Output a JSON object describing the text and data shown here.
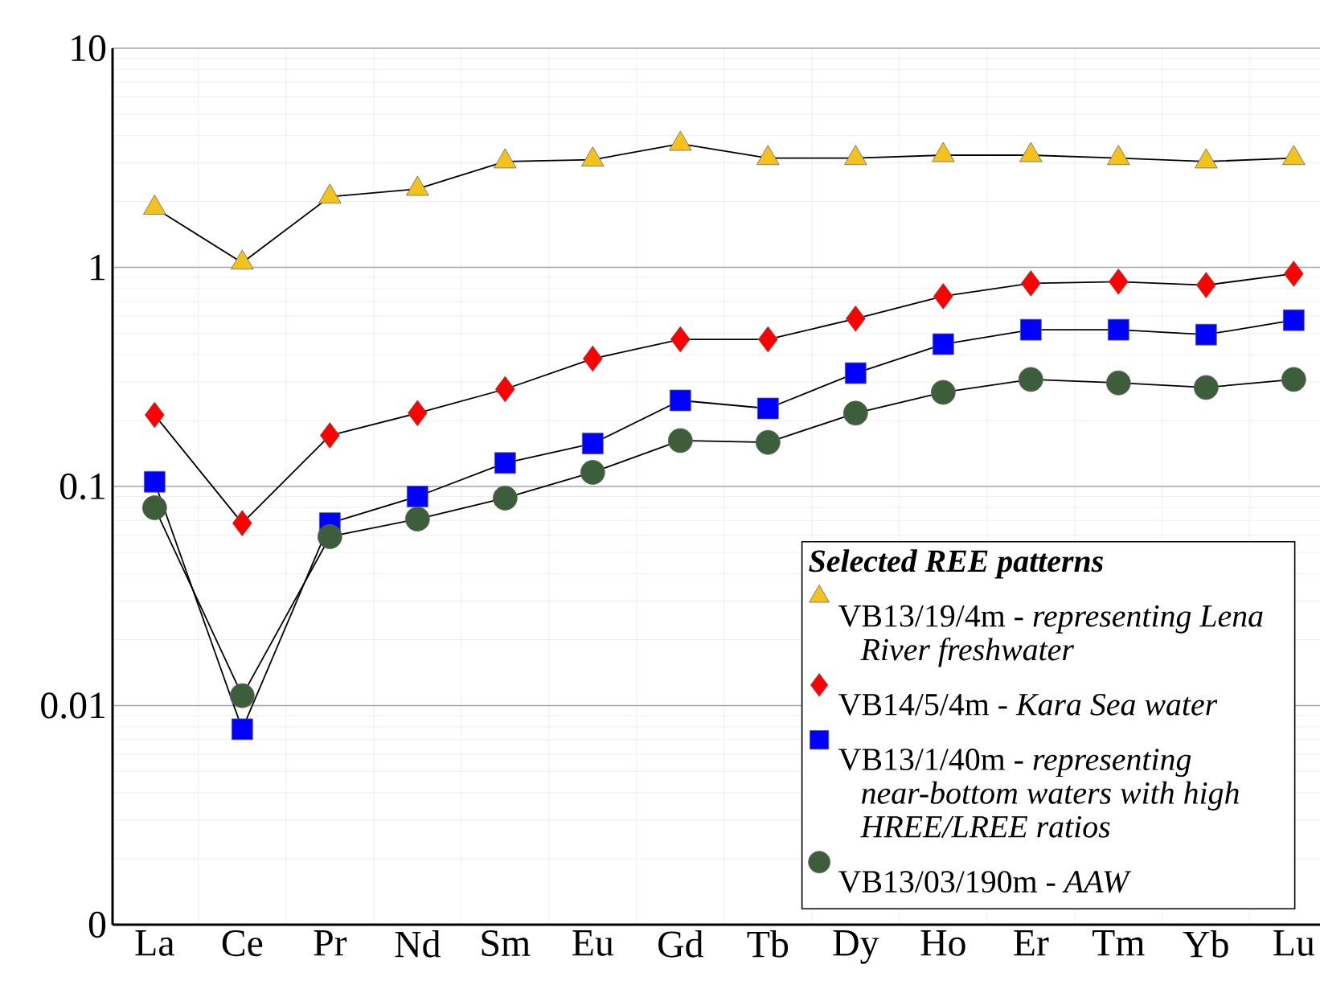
{
  "chart_data": {
    "type": "line",
    "categories": [
      "La",
      "Ce",
      "Pr",
      "Nd",
      "Sm",
      "Eu",
      "Gd",
      "Tb",
      "Dy",
      "Ho",
      "Er",
      "Tm",
      "Yb",
      "Lu"
    ],
    "log": "y",
    "ylim": [
      0.001,
      10
    ],
    "yticks": [
      {
        "value": 0.001,
        "label": "0"
      },
      0.01,
      0.1,
      1,
      10
    ],
    "grid": true,
    "legend": "bottom right",
    "legend_title": "Selected REE patterns",
    "series": [
      {
        "name": "VB13/19/4m - *representing Lena River freshwater*",
        "color": "#f5c21b",
        "marker": "triangle",
        "values": [
          1.87,
          1.05,
          2.1,
          2.28,
          3.04,
          3.1,
          3.66,
          3.15,
          3.15,
          3.25,
          3.25,
          3.15,
          3.04,
          3.15
        ]
      },
      {
        "name": "VB14/5/4m - *Kara Sea water*",
        "color": "#ff0000",
        "marker": "diamond",
        "values": [
          0.212,
          0.068,
          0.171,
          0.216,
          0.278,
          0.383,
          0.469,
          0.469,
          0.583,
          0.738,
          0.845,
          0.86,
          0.83,
          0.935
        ]
      },
      {
        "name": "VB13/1/40m - *representing near-bottom waters with high HREE/LREE ratios*",
        "color": "#0000ff",
        "marker": "square",
        "values": [
          0.105,
          0.0078,
          0.068,
          0.09,
          0.128,
          0.157,
          0.247,
          0.227,
          0.329,
          0.446,
          0.519,
          0.519,
          0.493,
          0.574
        ]
      },
      {
        "name": "VB13/03/190m - *AAW*",
        "color": "#3d5e3a",
        "marker": "circle",
        "values": [
          0.08,
          0.0111,
          0.059,
          0.071,
          0.0885,
          0.116,
          0.162,
          0.159,
          0.216,
          0.269,
          0.308,
          0.297,
          0.283,
          0.308
        ]
      }
    ]
  }
}
